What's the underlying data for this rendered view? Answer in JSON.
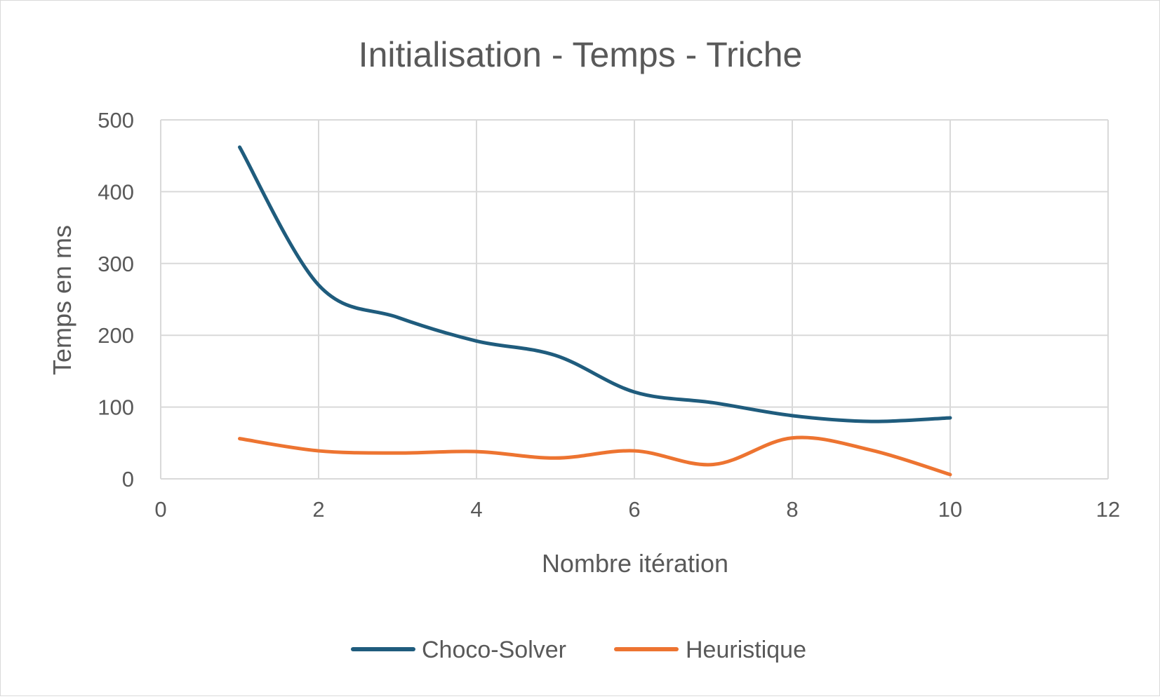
{
  "chart_data": {
    "type": "line",
    "title": "Initialisation - Temps - Triche",
    "xlabel": "Nombre itération",
    "ylabel": "Temps en ms",
    "xlim": [
      0,
      12
    ],
    "ylim": [
      0,
      500
    ],
    "x_ticks": [
      0,
      2,
      4,
      6,
      8,
      10,
      12
    ],
    "y_ticks": [
      0,
      100,
      200,
      300,
      400,
      500
    ],
    "grid": true,
    "smooth": true,
    "legend_position": "bottom",
    "x": [
      1,
      2,
      3,
      4,
      5,
      6,
      7,
      8,
      9,
      10
    ],
    "series": [
      {
        "name": "Choco-Solver",
        "color": "#1f5c7d",
        "values": [
          462,
          270,
          225,
          192,
          172,
          121,
          106,
          88,
          80,
          85
        ]
      },
      {
        "name": "Heuristique",
        "color": "#ed7431",
        "values": [
          56,
          39,
          36,
          38,
          29,
          39,
          20,
          57,
          40,
          6
        ]
      }
    ]
  }
}
